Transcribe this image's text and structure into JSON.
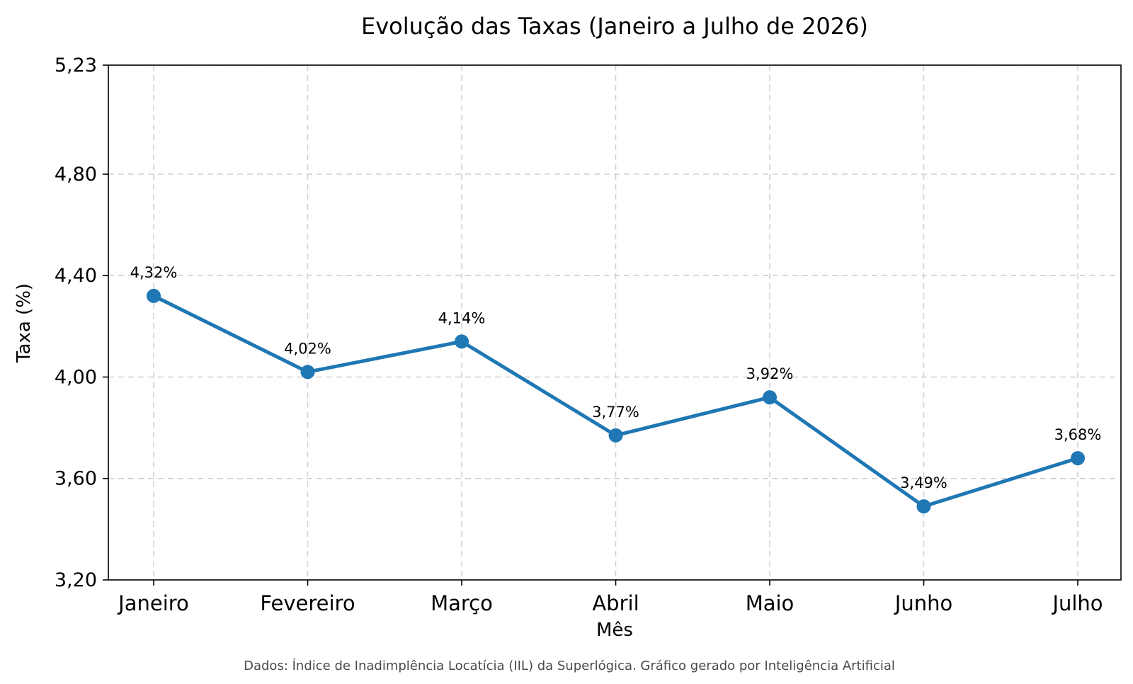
{
  "chart_data": {
    "type": "line",
    "title": "Evolução das Taxas (Janeiro a Julho de 2026)",
    "xlabel": "Mês",
    "ylabel": "Taxa (%)",
    "categories": [
      "Janeiro",
      "Fevereiro",
      "Março",
      "Abril",
      "Maio",
      "Junho",
      "Julho"
    ],
    "series": [
      {
        "values": [
          4.32,
          4.02,
          4.14,
          3.77,
          3.92,
          3.49,
          3.68
        ],
        "data_labels": [
          "4,32%",
          "4,02%",
          "4,14%",
          "3,77%",
          "3,92%",
          "3,49%",
          "3,68%"
        ],
        "color": "#1f77b4",
        "marker": "circle"
      }
    ],
    "ylim": [
      3.2,
      5.23
    ],
    "yticks": [
      3.2,
      3.6,
      4.0,
      4.4,
      4.8,
      5.23
    ],
    "ytick_labels": [
      "3,20",
      "3,60",
      "4,00",
      "4,40",
      "4,80",
      "5,23"
    ],
    "grid": true,
    "grid_style": "dashed",
    "source_note": "Dados: Índice de Inadimplência Locatícia (IIL) da Superlógica. Gráfico gerado por Inteligência Artificial"
  }
}
